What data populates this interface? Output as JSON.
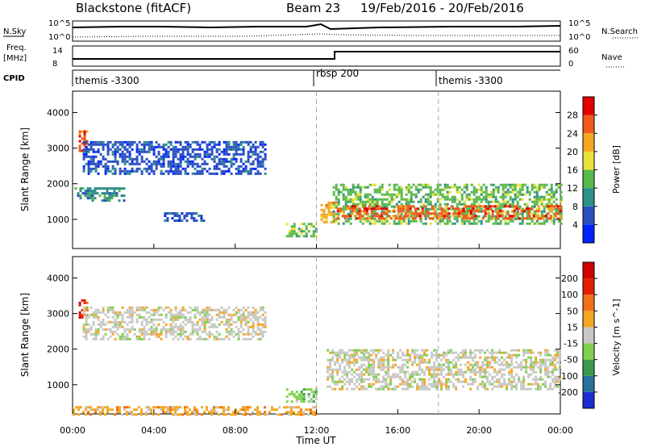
{
  "header": {
    "station": "Blackstone (fitACF)",
    "beam": "Beam 23",
    "date_range": "19/Feb/2016 - 20/Feb/2016"
  },
  "summary_panels": {
    "nsky_label": "N.Sky",
    "nsearch_label": "N.Search",
    "left_ticks_top": [
      "10^5",
      "10^0"
    ],
    "right_ticks_top": [
      "10^5",
      "10^0"
    ],
    "freq_label_1": "Freq.",
    "freq_label_2": "[MHz]",
    "freq_ticks": [
      "14",
      "8"
    ],
    "nave_label": "Nave",
    "nave_ticks": [
      "60",
      "0"
    ],
    "cpid_label": "CPID",
    "cpid_entries": [
      {
        "label": "themis -3300",
        "start_hour": 0
      },
      {
        "label": "rbsp 200",
        "start_hour": 12
      },
      {
        "label": "themis -3300",
        "start_hour": 18
      }
    ]
  },
  "chart_data": [
    {
      "type": "heatmap",
      "name": "power",
      "ylabel": "Slant Range [km]",
      "ylim": [
        180,
        4600
      ],
      "yticks": [
        1000,
        2000,
        3000,
        4000
      ],
      "xlim": [
        0,
        24
      ],
      "colorbar": {
        "label": "Power [dB]",
        "ticks": [
          "28",
          "24",
          "20",
          "16",
          "12",
          "8",
          "4"
        ],
        "colors": [
          "#0022ff",
          "#2a4fc0",
          "#2f8f8a",
          "#59b84a",
          "#e8e23a",
          "#f5a623",
          "#f25a1a",
          "#e00000"
        ]
      },
      "regions": [
        {
          "x0": 0.3,
          "x1": 0.7,
          "y0": 2900,
          "y1": 3500,
          "level": 6
        },
        {
          "x0": 0.1,
          "x1": 2.5,
          "y0": 1500,
          "y1": 1900,
          "level": 2
        },
        {
          "x0": 0.5,
          "x1": 9.5,
          "y0": 2300,
          "y1": 3200,
          "level": 1
        },
        {
          "x0": 4.5,
          "x1": 6.5,
          "y0": 950,
          "y1": 1200,
          "level": 1
        },
        {
          "x0": 10.5,
          "x1": 12.0,
          "y0": 500,
          "y1": 900,
          "level": 3
        },
        {
          "x0": 12.2,
          "x1": 13.0,
          "y0": 900,
          "y1": 1500,
          "level": 5
        },
        {
          "x0": 12.8,
          "x1": 24.0,
          "y0": 900,
          "y1": 2000,
          "level": 3
        },
        {
          "x0": 13.0,
          "x1": 24.0,
          "y0": 1050,
          "y1": 1400,
          "level": 6
        }
      ]
    },
    {
      "type": "heatmap",
      "name": "velocity",
      "ylabel": "Slant Range [km]",
      "ylim": [
        180,
        4600
      ],
      "yticks": [
        1000,
        2000,
        3000,
        4000
      ],
      "xlim": [
        0,
        24
      ],
      "xticks": [
        "00:00",
        "04:00",
        "08:00",
        "12:00",
        "16:00",
        "20:00",
        "00:00"
      ],
      "xlabel": "Time UT",
      "colorbar": {
        "label": "Velocity [m s^-1]",
        "ticks": [
          "200",
          "100",
          "50",
          "15",
          "-15",
          "-50",
          "-100",
          "-200"
        ],
        "colors": [
          "#1a2fd0",
          "#2a6f9a",
          "#3a9a4a",
          "#7fd050",
          "#c8c8c4",
          "#f5a623",
          "#f07018",
          "#e02000",
          "#d00000"
        ]
      },
      "regions": [
        {
          "x0": 0.3,
          "x1": 0.7,
          "y0": 2900,
          "y1": 3400,
          "level": 7
        },
        {
          "x0": 0.5,
          "x1": 9.5,
          "y0": 2300,
          "y1": 3200,
          "level": 4
        },
        {
          "x0": 12.5,
          "x1": 24.0,
          "y0": 900,
          "y1": 2000,
          "level": 4
        },
        {
          "x0": 10.5,
          "x1": 12.0,
          "y0": 500,
          "y1": 900,
          "level": 3
        },
        {
          "x0": 0.0,
          "x1": 12.0,
          "y0": 180,
          "y1": 400,
          "level": 5
        }
      ]
    }
  ]
}
